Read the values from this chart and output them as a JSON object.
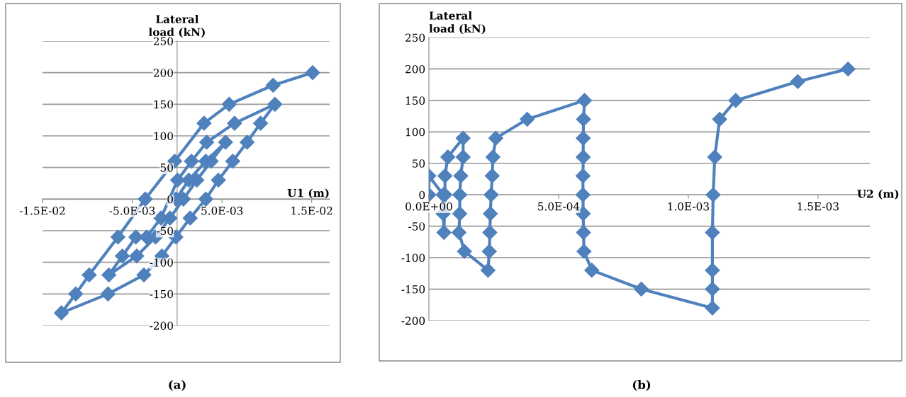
{
  "chart_data": [
    {
      "type": "line",
      "ylabel": "Lateral\nload (kN)",
      "xlabel": "U1 (m)",
      "annotations": [
        "(a)"
      ],
      "xlim": [
        -0.015,
        0.017
      ],
      "ylim": [
        -200,
        250
      ],
      "xticks": [
        {
          "value": -0.015,
          "label": "-1.5E-02"
        },
        {
          "value": -0.005,
          "label": "-5.0E-03"
        },
        {
          "value": 0.005,
          "label": "5.0E-03"
        },
        {
          "value": 0.015,
          "label": "1.5E-02"
        }
      ],
      "yticks": [
        -200,
        -150,
        -100,
        -50,
        0,
        50,
        100,
        150,
        200,
        250
      ],
      "grid": "y",
      "legend": false,
      "marker": "diamond",
      "line_style": "solid",
      "series": [
        {
          "color": "#4f81bd",
          "x": [
            -0.00013,
            0.0013,
            0.0032,
            0.0054,
            0.0038,
            0.0022,
            0.0007,
            -0.0008,
            -0.0024,
            -0.0045,
            -0.0076,
            -0.0061,
            -0.0046,
            -0.0034,
            -0.0018,
            5e-05,
            0.0016,
            0.0033,
            0.0064,
            0.0109,
            0.0093,
            0.0078,
            0.0062,
            0.0046,
            0.0032,
            0.00145,
            -0.00013,
            -0.0017,
            -0.0037,
            -0.0077,
            -0.0129,
            -0.0113,
            -0.0098,
            -0.0066,
            -0.00355,
            -0.00026,
            0.003,
            0.0058,
            0.0107,
            0.0151
          ],
          "values": [
            0,
            30,
            60,
            90,
            60,
            30,
            0,
            -30,
            -60,
            -90,
            -120,
            -90,
            -60,
            -60,
            -30,
            30,
            60,
            90,
            120,
            150,
            120,
            90,
            60,
            30,
            0,
            -30,
            -60,
            -90,
            -120,
            -150,
            -180,
            -150,
            -120,
            -60,
            0,
            60,
            120,
            150,
            180,
            200
          ]
        }
      ]
    },
    {
      "type": "line",
      "ylabel": "Lateral\nload (kN)",
      "xlabel": "U2 (m)",
      "annotations": [
        "(b)"
      ],
      "xlim": [
        0,
        0.0017
      ],
      "ylim": [
        -200,
        250
      ],
      "xticks": [
        {
          "value": 0,
          "label": "0.0E+00"
        },
        {
          "value": 0.0005,
          "label": "5.0E-04"
        },
        {
          "value": 0.001,
          "label": "1.0E-03"
        },
        {
          "value": 0.0015,
          "label": "1.5E-03"
        }
      ],
      "yticks": [
        -200,
        -150,
        -100,
        -50,
        0,
        50,
        100,
        150,
        200,
        250
      ],
      "grid": "y",
      "legend": false,
      "marker": "diamond",
      "line_style": "solid",
      "series": [
        {
          "color": "#4f81bd",
          "x": [
            0,
            0,
            5.5e-05,
            5.5e-05,
            5.8e-05,
            6.2e-05,
            6.2e-05,
            7.3e-05,
            0.000132,
            0.000132,
            0.000123,
            0.000119,
            0.000119,
            0.000116,
            0.000137,
            0.000228,
            0.000233,
            0.000235,
            0.000237,
            0.00024,
            0.000244,
            0.000247,
            0.000258,
            0.000379,
            0.0006,
            0.000596,
            0.000595,
            0.000595,
            0.000594,
            0.000594,
            0.000595,
            0.000596,
            0.000598,
            0.000628,
            0.000819,
            0.001093,
            0.001093,
            0.001093,
            0.001093,
            0.001096,
            0.001102,
            0.001121,
            0.001183,
            0.001422,
            0.001616
          ],
          "values": [
            0,
            30,
            0,
            -30,
            -60,
            0,
            30,
            60,
            90,
            60,
            30,
            0,
            -30,
            -60,
            -90,
            -120,
            -90,
            -60,
            -30,
            0,
            30,
            60,
            90,
            120,
            150,
            120,
            90,
            60,
            30,
            0,
            -30,
            -60,
            -90,
            -120,
            -150,
            -180,
            -150,
            -120,
            -60,
            0,
            60,
            120,
            150,
            180,
            200
          ]
        }
      ]
    }
  ]
}
